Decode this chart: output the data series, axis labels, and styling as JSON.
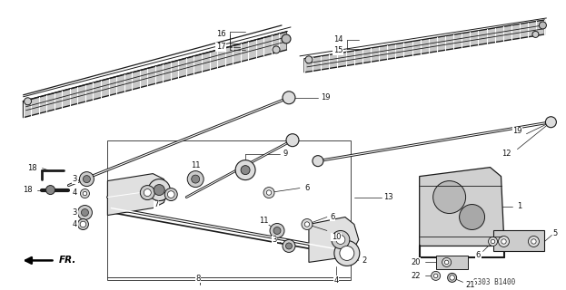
{
  "bg_color": "#ffffff",
  "fig_width": 6.23,
  "fig_height": 3.2,
  "dpi": 100,
  "line_color": "#1a1a1a",
  "text_color": "#111111",
  "label_fontsize": 6.0,
  "diagram_code_label": "S303 B1400"
}
